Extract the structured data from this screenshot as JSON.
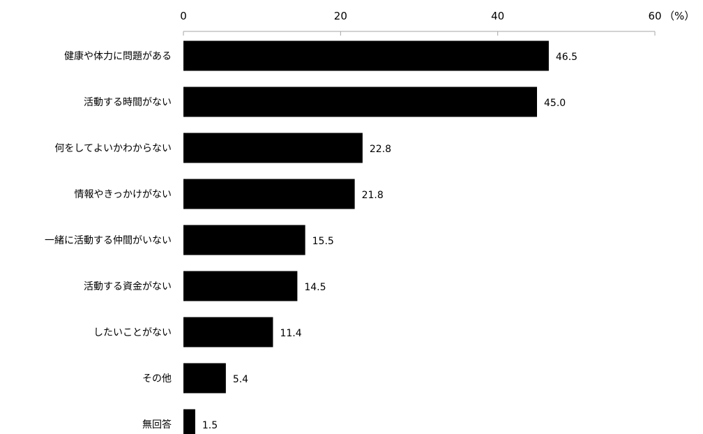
{
  "chart_data": {
    "type": "bar",
    "orientation": "horizontal",
    "x_axis": {
      "position": "top",
      "range": [
        0,
        60
      ],
      "ticks": [
        0,
        20,
        40,
        60
      ],
      "tick_labels": [
        "0",
        "20",
        "40",
        "60"
      ],
      "unit": "（%）"
    },
    "categories": [
      "健康や体力に問題がある",
      "活動する時間がない",
      "何をしてよいかわからない",
      "情報やきっかけがない",
      "一緒に活動する仲間がいない",
      "活動する資金がない",
      "したいことがない",
      "その他",
      "無回答"
    ],
    "values": [
      46.5,
      45.0,
      22.8,
      21.8,
      15.5,
      14.5,
      11.4,
      5.4,
      1.5
    ],
    "value_labels": [
      "46.5",
      "45.0",
      "22.8",
      "21.8",
      "15.5",
      "14.5",
      "11.4",
      "5.4",
      "1.5"
    ],
    "grid": false,
    "legend": "none",
    "colors": {
      "bar": "#000000",
      "axis": "#a6a6a6",
      "text": "#000000"
    }
  }
}
